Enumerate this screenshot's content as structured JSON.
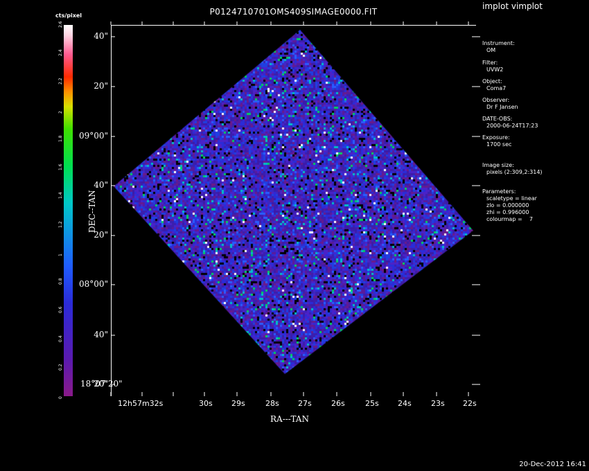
{
  "window": {
    "app_title": "implot vimplot",
    "image_title": "P0124710701OMS409SIMAGE0000.FIT",
    "footer_timestamp": "20-Dec-2012 16:41"
  },
  "colorbar": {
    "title": "cts/pixel",
    "ticks": [
      "0",
      "0.2",
      "0.4",
      "0.6",
      "0.8",
      "1",
      "1.2",
      "1.4",
      "1.6",
      "1.8",
      "2",
      "2.2",
      "2.4",
      "2.6"
    ],
    "colors": [
      "#8a1a8a",
      "#2b2bd8",
      "#00c8c8",
      "#00e050",
      "#d8e000",
      "#ff2a00",
      "#ffffff"
    ]
  },
  "info_panel": [
    {
      "label": "Instrument:",
      "value": "OM"
    },
    {
      "label": "Filter:",
      "value": "UVW2"
    },
    {
      "label": "Object:",
      "value": "Coma7"
    },
    {
      "label": "Observer:",
      "value": "Dr F Jansen"
    },
    {
      "label": "DATE-OBS:",
      "value": "2000-06-24T17:23"
    },
    {
      "label": "Exposure:",
      "value": "1700 sec"
    },
    {
      "label": "Image size:",
      "value": "pixels (2:309,2:314)"
    },
    {
      "label": "Parameters:",
      "value": "scaletype = linear\nzlo = 0.000000\nzhi = 0.996000\ncolourmap =    7"
    }
  ],
  "axes": {
    "x_title": "RA---TAN",
    "y_title": "DEC--TAN",
    "x_ticks": [
      "12h57m32s",
      "30s",
      "29s",
      "28s",
      "27s",
      "26s",
      "25s",
      "24s",
      "23s",
      "22s"
    ],
    "y_ticks": [
      "40\"",
      "20\"",
      "09°00\"",
      "40\"",
      "20\"",
      "08°00\"",
      "40\"",
      "20\""
    ],
    "y_bottom_label": "18°07'20\""
  }
}
